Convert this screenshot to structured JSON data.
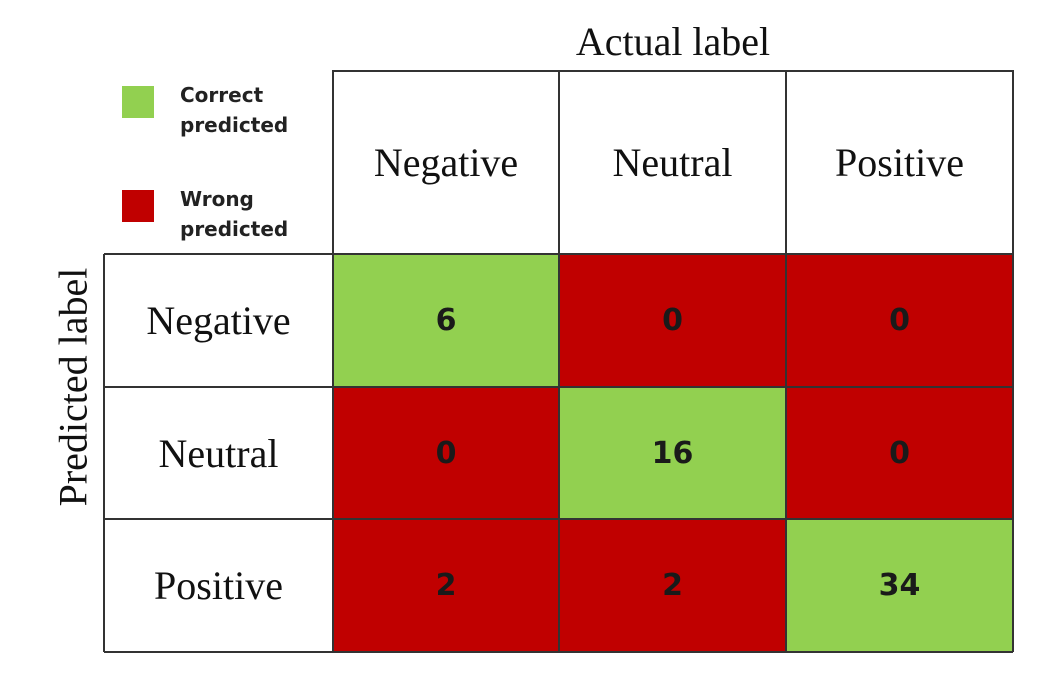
{
  "chart_data": {
    "type": "heatmap",
    "title": "",
    "xlabel": "Actual label",
    "ylabel": "Predicted label",
    "columns": [
      "Negative",
      "Neutral",
      "Positive"
    ],
    "rows": [
      "Negative",
      "Neutral",
      "Positive"
    ],
    "values": [
      [
        6,
        0,
        0
      ],
      [
        0,
        16,
        0
      ],
      [
        2,
        2,
        34
      ]
    ],
    "legend": [
      {
        "label": "Correct predicted",
        "color": "#92d050"
      },
      {
        "label": "Wrong predicted",
        "color": "#c00000"
      }
    ],
    "legend_position": "top-left",
    "grid": true
  }
}
